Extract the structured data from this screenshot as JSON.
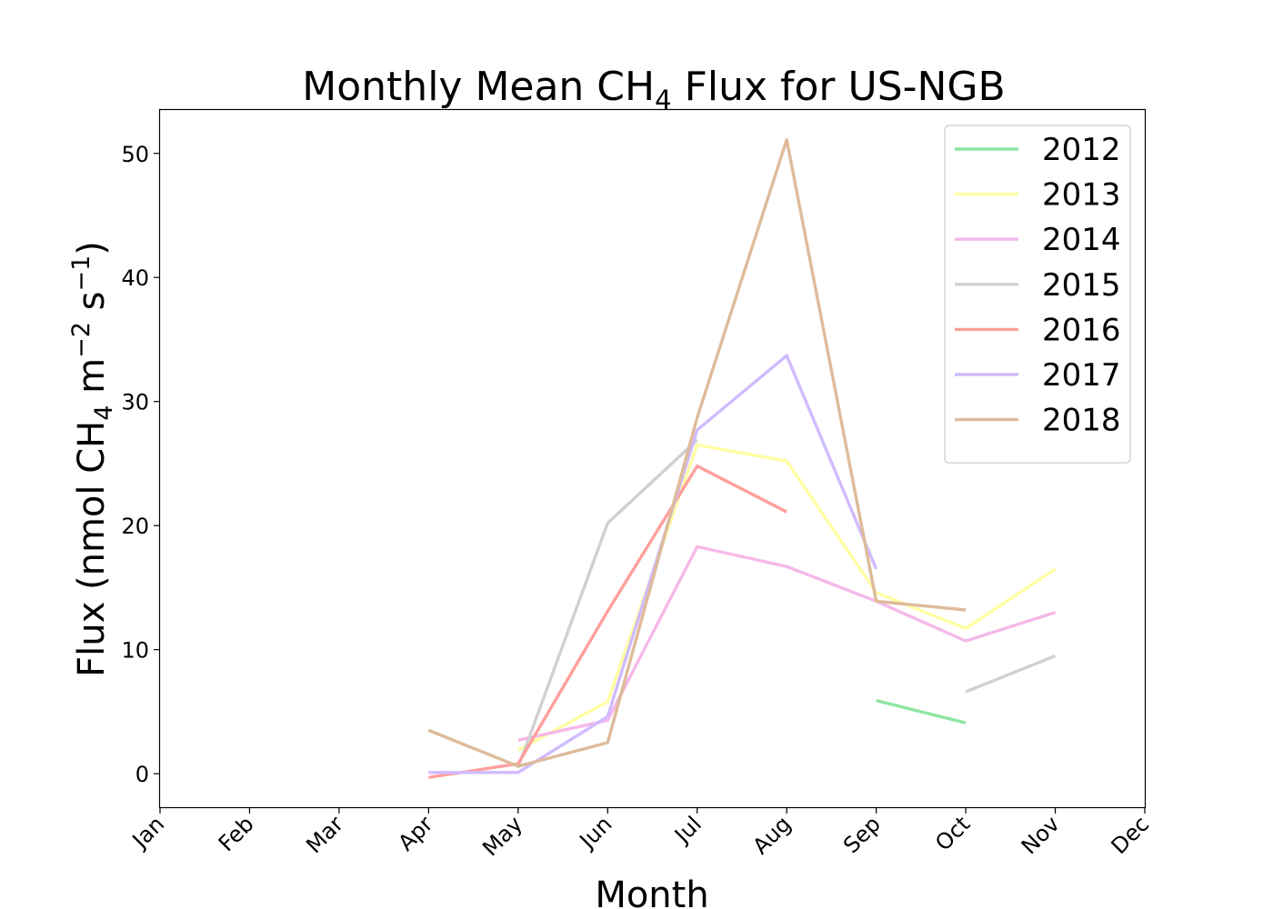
{
  "chart_data": {
    "type": "line",
    "title": {
      "prefix": "Monthly Mean CH",
      "sub": "4",
      "suffix": " Flux for US-NGB"
    },
    "xlabel": "Month",
    "ylabel": {
      "p1": "Flux (nmol CH",
      "sub1": "4",
      "p2": " m",
      "sup1": "−2",
      "p3": " s",
      "sup2": "−1",
      "p4": ")"
    },
    "categories": [
      "Jan",
      "Feb",
      "Mar",
      "Apr",
      "May",
      "Jun",
      "Jul",
      "Aug",
      "Sep",
      "Oct",
      "Nov",
      "Dec"
    ],
    "yticks": [
      0,
      10,
      20,
      30,
      40,
      50
    ],
    "ylim": [
      -2.7,
      53.5
    ],
    "legend_position": "upper-right",
    "series": [
      {
        "name": "2012",
        "color": "#8de5a1",
        "values": [
          null,
          null,
          null,
          null,
          null,
          null,
          null,
          null,
          5.9,
          4.1,
          null,
          null
        ]
      },
      {
        "name": "2013",
        "color": "#fffea3",
        "values": [
          null,
          null,
          null,
          null,
          1.9,
          5.8,
          26.5,
          25.2,
          14.6,
          11.7,
          16.5,
          null
        ]
      },
      {
        "name": "2014",
        "color": "#f6b8e8",
        "values": [
          null,
          null,
          null,
          null,
          2.7,
          4.3,
          18.3,
          16.7,
          13.9,
          10.7,
          13.0,
          null
        ]
      },
      {
        "name": "2015",
        "color": "#d0d0d0",
        "values": [
          null,
          null,
          null,
          null,
          0.5,
          20.2,
          26.9,
          null,
          null,
          6.6,
          9.5,
          null
        ]
      },
      {
        "name": "2016",
        "color": "#ff9f9b",
        "values": [
          null,
          null,
          null,
          -0.3,
          0.8,
          13.1,
          24.8,
          21.1,
          null,
          null,
          null,
          null
        ]
      },
      {
        "name": "2017",
        "color": "#d0bbff",
        "values": [
          null,
          null,
          null,
          0.1,
          0.1,
          4.6,
          27.7,
          33.7,
          16.5,
          null,
          null,
          null
        ]
      },
      {
        "name": "2018",
        "color": "#debb9b",
        "values": [
          null,
          null,
          null,
          3.5,
          0.6,
          2.5,
          28.7,
          51.1,
          13.9,
          13.2,
          null,
          null
        ]
      }
    ]
  }
}
